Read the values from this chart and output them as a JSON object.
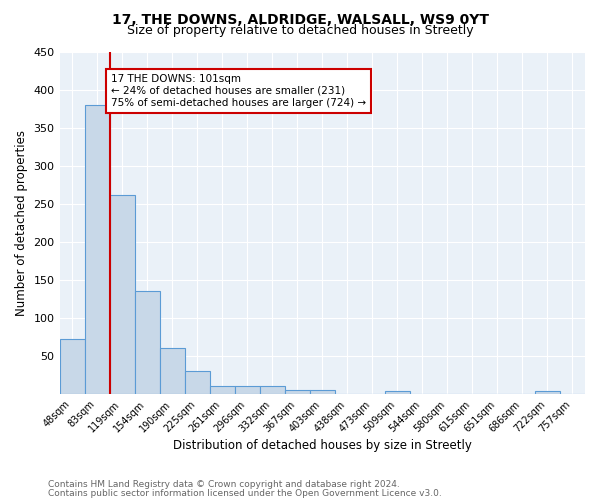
{
  "title": "17, THE DOWNS, ALDRIDGE, WALSALL, WS9 0YT",
  "subtitle": "Size of property relative to detached houses in Streetly",
  "xlabel": "Distribution of detached houses by size in Streetly",
  "ylabel": "Number of detached properties",
  "bin_labels": [
    "48sqm",
    "83sqm",
    "119sqm",
    "154sqm",
    "190sqm",
    "225sqm",
    "261sqm",
    "296sqm",
    "332sqm",
    "367sqm",
    "403sqm",
    "438sqm",
    "473sqm",
    "509sqm",
    "544sqm",
    "580sqm",
    "615sqm",
    "651sqm",
    "686sqm",
    "722sqm",
    "757sqm"
  ],
  "bar_heights": [
    72,
    380,
    262,
    136,
    60,
    30,
    10,
    10,
    10,
    5,
    5,
    0,
    0,
    4,
    0,
    0,
    0,
    0,
    0,
    4,
    0
  ],
  "bar_color": "#c8d8e8",
  "bar_edge_color": "#5b9bd5",
  "vline_color": "#cc0000",
  "annotation_text": "17 THE DOWNS: 101sqm\n← 24% of detached houses are smaller (231)\n75% of semi-detached houses are larger (724) →",
  "annotation_box_color": "#ffffff",
  "annotation_box_edge": "#cc0000",
  "ylim": [
    0,
    450
  ],
  "yticks": [
    0,
    50,
    100,
    150,
    200,
    250,
    300,
    350,
    400,
    450
  ],
  "footer1": "Contains HM Land Registry data © Crown copyright and database right 2024.",
  "footer2": "Contains public sector information licensed under the Open Government Licence v3.0.",
  "plot_bg_color": "#eaf1f8",
  "title_fontsize": 10,
  "subtitle_fontsize": 9
}
